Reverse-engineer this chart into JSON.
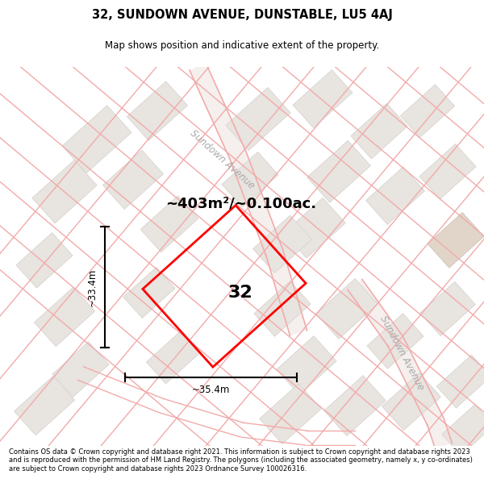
{
  "title": "32, SUNDOWN AVENUE, DUNSTABLE, LU5 4AJ",
  "subtitle": "Map shows position and indicative extent of the property.",
  "area_text": "~403m²/~0.100ac.",
  "dim_width": "~35.4m",
  "dim_height": "~33.4m",
  "plot_label": "32",
  "street_label1": "Sundown Avenue",
  "street_label2": "Sundown Avenue",
  "disclaimer": "Contains OS data © Crown copyright and database right 2021. This information is subject to Crown copyright and database rights 2023 and is reproduced with the permission of HM Land Registry. The polygons (including the associated geometry, namely x, y co-ordinates) are subject to Crown copyright and database rights 2023 Ordnance Survey 100026316.",
  "bg_color": "#ffffff",
  "map_bg": "#f9f6f4",
  "road_color": "#f2aaaa",
  "block_color": "#e8e4e0",
  "block_edge": "#d8d4d0",
  "plot_color": "#ff0000",
  "title_color": "#000000",
  "disclaimer_color": "#000000",
  "fig_width": 6.0,
  "fig_height": 6.25,
  "dpi": 100
}
